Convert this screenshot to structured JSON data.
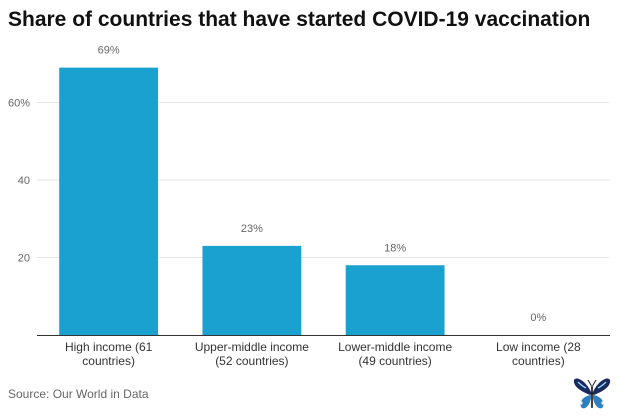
{
  "title": "Share of countries that have started COVID-19 vaccination",
  "source": "Source: Our World in Data",
  "colors": {
    "bar": "#1ba1cf",
    "grid": "#e6e6e6",
    "axis": "#333333",
    "text": "#333333",
    "tick": "#666666",
    "label": "#666666"
  },
  "chart_data": {
    "type": "bar",
    "title": "Share of countries that have started COVID-19 vaccination",
    "xlabel": "",
    "ylabel": "",
    "ylim": [
      0,
      80
    ],
    "yticks": [
      20,
      40,
      60
    ],
    "ytick_labels": [
      "20",
      "40",
      "60%"
    ],
    "grid": true,
    "categories": [
      [
        "High income (61",
        "countries)"
      ],
      [
        "Upper-middle income",
        "(52 countries)"
      ],
      [
        "Lower-middle income",
        "(49 countries)"
      ],
      [
        "Low income (28",
        "countries)"
      ]
    ],
    "values": [
      69,
      23,
      18,
      0
    ],
    "data_labels": [
      "69%",
      "23%",
      "18%",
      "0%"
    ]
  }
}
